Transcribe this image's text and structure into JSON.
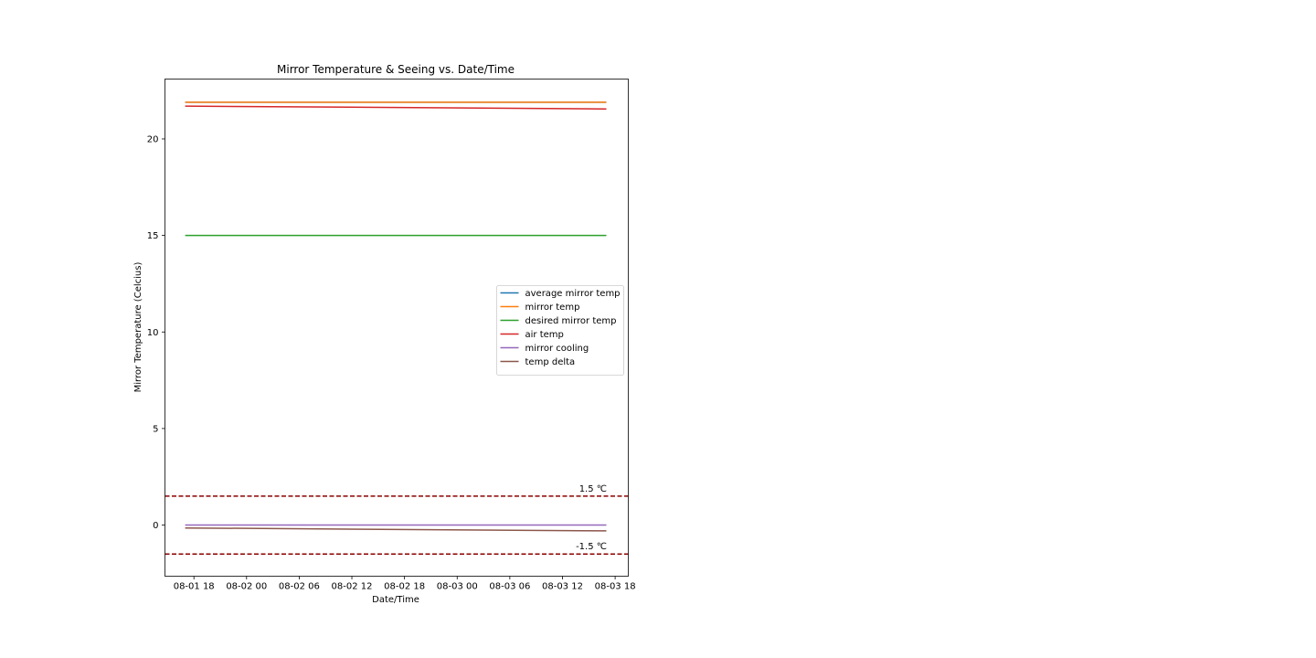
{
  "chart_data": {
    "type": "line",
    "title": "Mirror Temperature & Seeing vs. Date/Time",
    "xlabel": "Date/Time",
    "ylabel": "Mirror Temperature (Celcius)",
    "x_ticks": [
      "08-01 18",
      "08-02 00",
      "08-02 06",
      "08-02 12",
      "08-02 18",
      "08-03 00",
      "08-03 06",
      "08-03 12",
      "08-03 18"
    ],
    "x_tick_hours": [
      0,
      6,
      12,
      18,
      24,
      30,
      36,
      42,
      48
    ],
    "xlim_hours": [
      -3.3,
      49.5
    ],
    "x_range": [
      "08-01 17",
      "08-03 17"
    ],
    "y_ticks": [
      0,
      5,
      10,
      15,
      20
    ],
    "ylim": [
      -2.65,
      23.1
    ],
    "legend_position": "center-right",
    "series": [
      {
        "name": "average mirror temp",
        "color": "#1f77b4",
        "x": [
          "08-01 17",
          "08-03 17"
        ],
        "values": [
          21.9,
          21.9
        ]
      },
      {
        "name": "mirror temp",
        "color": "#ff7f0e",
        "x": [
          "08-01 17",
          "08-03 17"
        ],
        "values": [
          21.9,
          21.9
        ]
      },
      {
        "name": "desired mirror temp",
        "color": "#2ca02c",
        "x": [
          "08-01 17",
          "08-03 17"
        ],
        "values": [
          15.0,
          15.0
        ]
      },
      {
        "name": "air temp",
        "color": "#d62728",
        "x": [
          "08-01 17",
          "08-03 17"
        ],
        "values": [
          21.7,
          21.55
        ]
      },
      {
        "name": "mirror cooling",
        "color": "#9467bd",
        "x": [
          "08-01 17",
          "08-03 17"
        ],
        "values": [
          0.0,
          0.0
        ]
      },
      {
        "name": "temp delta",
        "color": "#8c564b",
        "x": [
          "08-01 17",
          "08-03 17"
        ],
        "values": [
          -0.15,
          -0.3
        ]
      }
    ],
    "reference_lines": [
      {
        "y": 1.5,
        "label": "1.5 ℃",
        "color": "#8b0000",
        "style": "dashed"
      },
      {
        "y": -1.5,
        "label": "-1.5 ℃",
        "color": "#8b0000",
        "style": "dashed"
      }
    ]
  }
}
